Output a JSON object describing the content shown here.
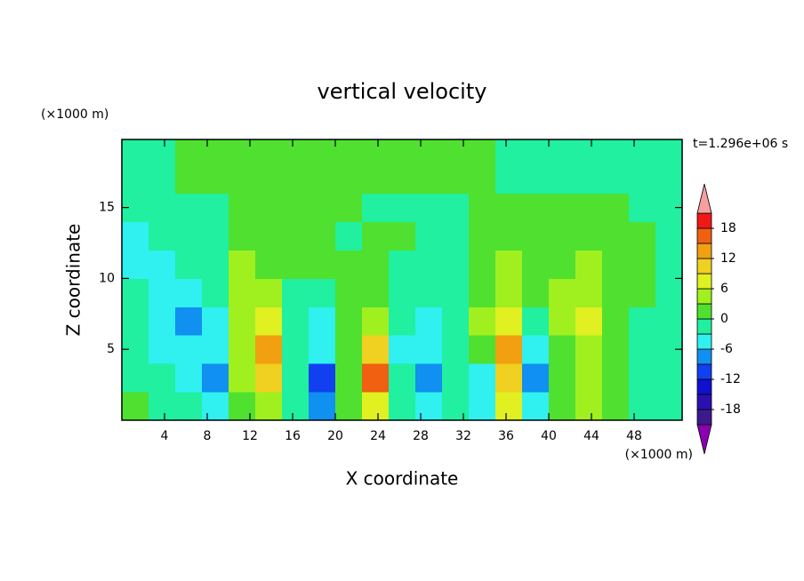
{
  "chart_data": {
    "type": "contour",
    "title": "vertical velocity",
    "x_label": "X coordinate",
    "y_label": "Z coordinate",
    "x_unit": "(×1000 m)",
    "y_unit": "(×1000 m)",
    "time_label": "t=1.296e+06 s",
    "xlim": [
      0,
      52.5
    ],
    "ylim": [
      0,
      19.8
    ],
    "xticks": [
      4,
      8,
      12,
      16,
      20,
      24,
      28,
      32,
      36,
      40,
      44,
      48
    ],
    "yticks": [
      5,
      10,
      15
    ],
    "x": [
      1.25,
      3.75,
      6.25,
      8.75,
      11.25,
      13.75,
      16.25,
      18.75,
      21.25,
      23.75,
      26.25,
      28.75,
      31.25,
      33.75,
      36.25,
      38.75,
      41.25,
      43.75,
      46.25,
      48.75,
      51.25
    ],
    "y": [
      1,
      3,
      5,
      7,
      9,
      11,
      13,
      15,
      17,
      19
    ],
    "z": [
      [
        1.5,
        -1.5,
        -1.5,
        -4.5,
        1.5,
        4.5,
        -1.5,
        -7.5,
        1.5,
        7.5,
        -1.5,
        -4.5,
        -1.5,
        -4.5,
        7.5,
        -4.5,
        1.5,
        4.5,
        1.5,
        -1.5,
        -1.5
      ],
      [
        -1.5,
        -1.5,
        -4.5,
        -7.5,
        4.5,
        10.5,
        -1.5,
        -10.5,
        1.5,
        16.5,
        -1.5,
        -7.5,
        -1.5,
        -4.5,
        10.5,
        -7.5,
        1.5,
        4.5,
        1.5,
        -1.5,
        -1.5
      ],
      [
        -1.5,
        -4.5,
        -4.5,
        -4.5,
        4.5,
        13.5,
        -1.5,
        -4.5,
        1.5,
        10.5,
        -4.5,
        -4.5,
        -1.5,
        1.5,
        13.5,
        -4.5,
        1.5,
        4.5,
        1.5,
        -1.5,
        -1.5
      ],
      [
        -1.5,
        -4.5,
        -7.5,
        -4.5,
        4.5,
        7.5,
        -1.5,
        -4.5,
        1.5,
        4.5,
        -1.5,
        -4.5,
        -1.5,
        4.5,
        7.5,
        -1.5,
        4.5,
        7.5,
        1.5,
        -1.5,
        -1.5
      ],
      [
        -1.5,
        -4.5,
        -4.5,
        -1.5,
        4.5,
        4.5,
        -1.5,
        -1.5,
        1.5,
        1.5,
        -1.5,
        -1.5,
        -1.5,
        1.5,
        4.5,
        1.5,
        4.5,
        4.5,
        1.5,
        1.5,
        -1.5
      ],
      [
        -4.5,
        -4.5,
        -1.5,
        -1.5,
        4.5,
        1.5,
        1.5,
        1.5,
        1.5,
        1.5,
        -1.5,
        -1.5,
        -1.5,
        1.5,
        4.5,
        1.5,
        1.5,
        4.5,
        1.5,
        1.5,
        -1.5
      ],
      [
        -4.5,
        -1.5,
        -1.5,
        -1.5,
        1.5,
        1.5,
        1.5,
        1.5,
        -1.5,
        1.5,
        1.5,
        -1.5,
        -1.5,
        1.5,
        1.5,
        1.5,
        1.5,
        1.5,
        1.5,
        1.5,
        -1.5
      ],
      [
        -1.5,
        -1.5,
        -1.5,
        -1.5,
        1.5,
        1.5,
        1.5,
        1.5,
        1.5,
        -1.5,
        -1.5,
        -1.5,
        -1.5,
        1.5,
        1.5,
        1.5,
        1.5,
        1.5,
        1.5,
        -1.5,
        -1.5
      ],
      [
        -1.5,
        -1.5,
        1.5,
        1.5,
        1.5,
        1.5,
        1.5,
        1.5,
        1.5,
        1.5,
        1.5,
        1.5,
        1.5,
        1.5,
        -1.5,
        -1.5,
        -1.5,
        -1.5,
        -1.5,
        -1.5,
        -1.5
      ],
      [
        -1.5,
        -1.5,
        1.5,
        1.5,
        1.5,
        1.5,
        1.5,
        1.5,
        1.5,
        1.5,
        1.5,
        1.5,
        1.5,
        1.5,
        -1.5,
        -1.5,
        -1.5,
        -1.5,
        -1.5,
        -1.5,
        -1.5
      ]
    ],
    "levels": [
      -21,
      -18,
      -15,
      -12,
      -9,
      -6,
      -3,
      0,
      3,
      6,
      9,
      12,
      15,
      18,
      21
    ],
    "colors": [
      "#8b00b0",
      "#3c1a8c",
      "#2a10b0",
      "#1010d0",
      "#1040f0",
      "#1090f0",
      "#30f0f0",
      "#20f0a0",
      "#50e030",
      "#a0f020",
      "#e0f020",
      "#f0d020",
      "#f0a010",
      "#f06010",
      "#f01818",
      "#f4a0a0"
    ],
    "colorbar_ticks": [
      18,
      12,
      6,
      0,
      -6,
      -12,
      -18
    ]
  }
}
